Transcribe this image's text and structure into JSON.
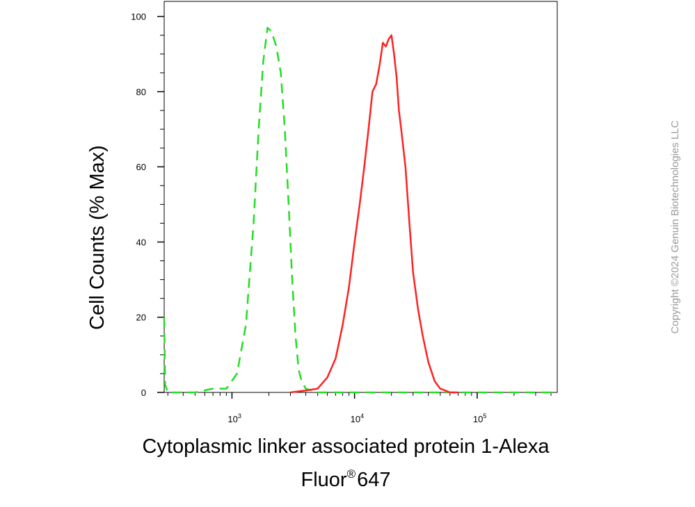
{
  "chart_data": {
    "type": "line",
    "xscale": "log",
    "xlim": [
      280,
      450000
    ],
    "ylim": [
      0,
      104
    ],
    "yticks": [
      0,
      20,
      40,
      60,
      80,
      100
    ],
    "xticks_major": [
      1000,
      10000,
      100000
    ],
    "xtick_labels": [
      {
        "base": "10",
        "exp": "3"
      },
      {
        "base": "10",
        "exp": "4"
      },
      {
        "base": "10",
        "exp": "5"
      }
    ],
    "ylabel": "Cell Counts (% Max)",
    "xlabel_line1": "Cytoplasmic linker associated protein 1-Alexa",
    "xlabel_line2_pre": "Fluor",
    "xlabel_line2_sup": "®",
    "xlabel_line2_post": "647",
    "series": [
      {
        "color": "#22dd22",
        "dash": "dashed",
        "x": [
          280,
          285,
          300,
          500,
          700,
          900,
          1100,
          1300,
          1500,
          1650,
          1800,
          1950,
          2100,
          2300,
          2500,
          2700,
          2900,
          3100,
          3300,
          3500,
          3700,
          4000,
          4500,
          5000,
          6000,
          20000,
          450000
        ],
        "y": [
          20,
          2,
          0,
          0,
          1,
          1,
          5,
          18,
          45,
          70,
          88,
          97,
          96,
          92,
          85,
          70,
          50,
          30,
          15,
          6,
          3,
          1,
          0.5,
          0,
          0,
          0,
          0
        ]
      },
      {
        "color": "#ff2020",
        "dash": "solid",
        "x": [
          3000,
          4000,
          5000,
          6000,
          7000,
          8000,
          9000,
          10000,
          11000,
          12000,
          13000,
          14000,
          15000,
          16000,
          17000,
          18000,
          19000,
          20000,
          21000,
          22000,
          23000,
          24000,
          26000,
          28000,
          30000,
          33000,
          36000,
          40000,
          45000,
          50000,
          55000,
          60000,
          70000
        ],
        "y": [
          0,
          0.5,
          1,
          4,
          9,
          18,
          28,
          40,
          50,
          60,
          70,
          80,
          82,
          87,
          93,
          92,
          94,
          95,
          90,
          84,
          75,
          70,
          60,
          45,
          32,
          22,
          15,
          8,
          3,
          1,
          0.5,
          0,
          0
        ]
      }
    ]
  },
  "copyright": "Copyright ©2024 Genuin Biotechnologies LLC"
}
